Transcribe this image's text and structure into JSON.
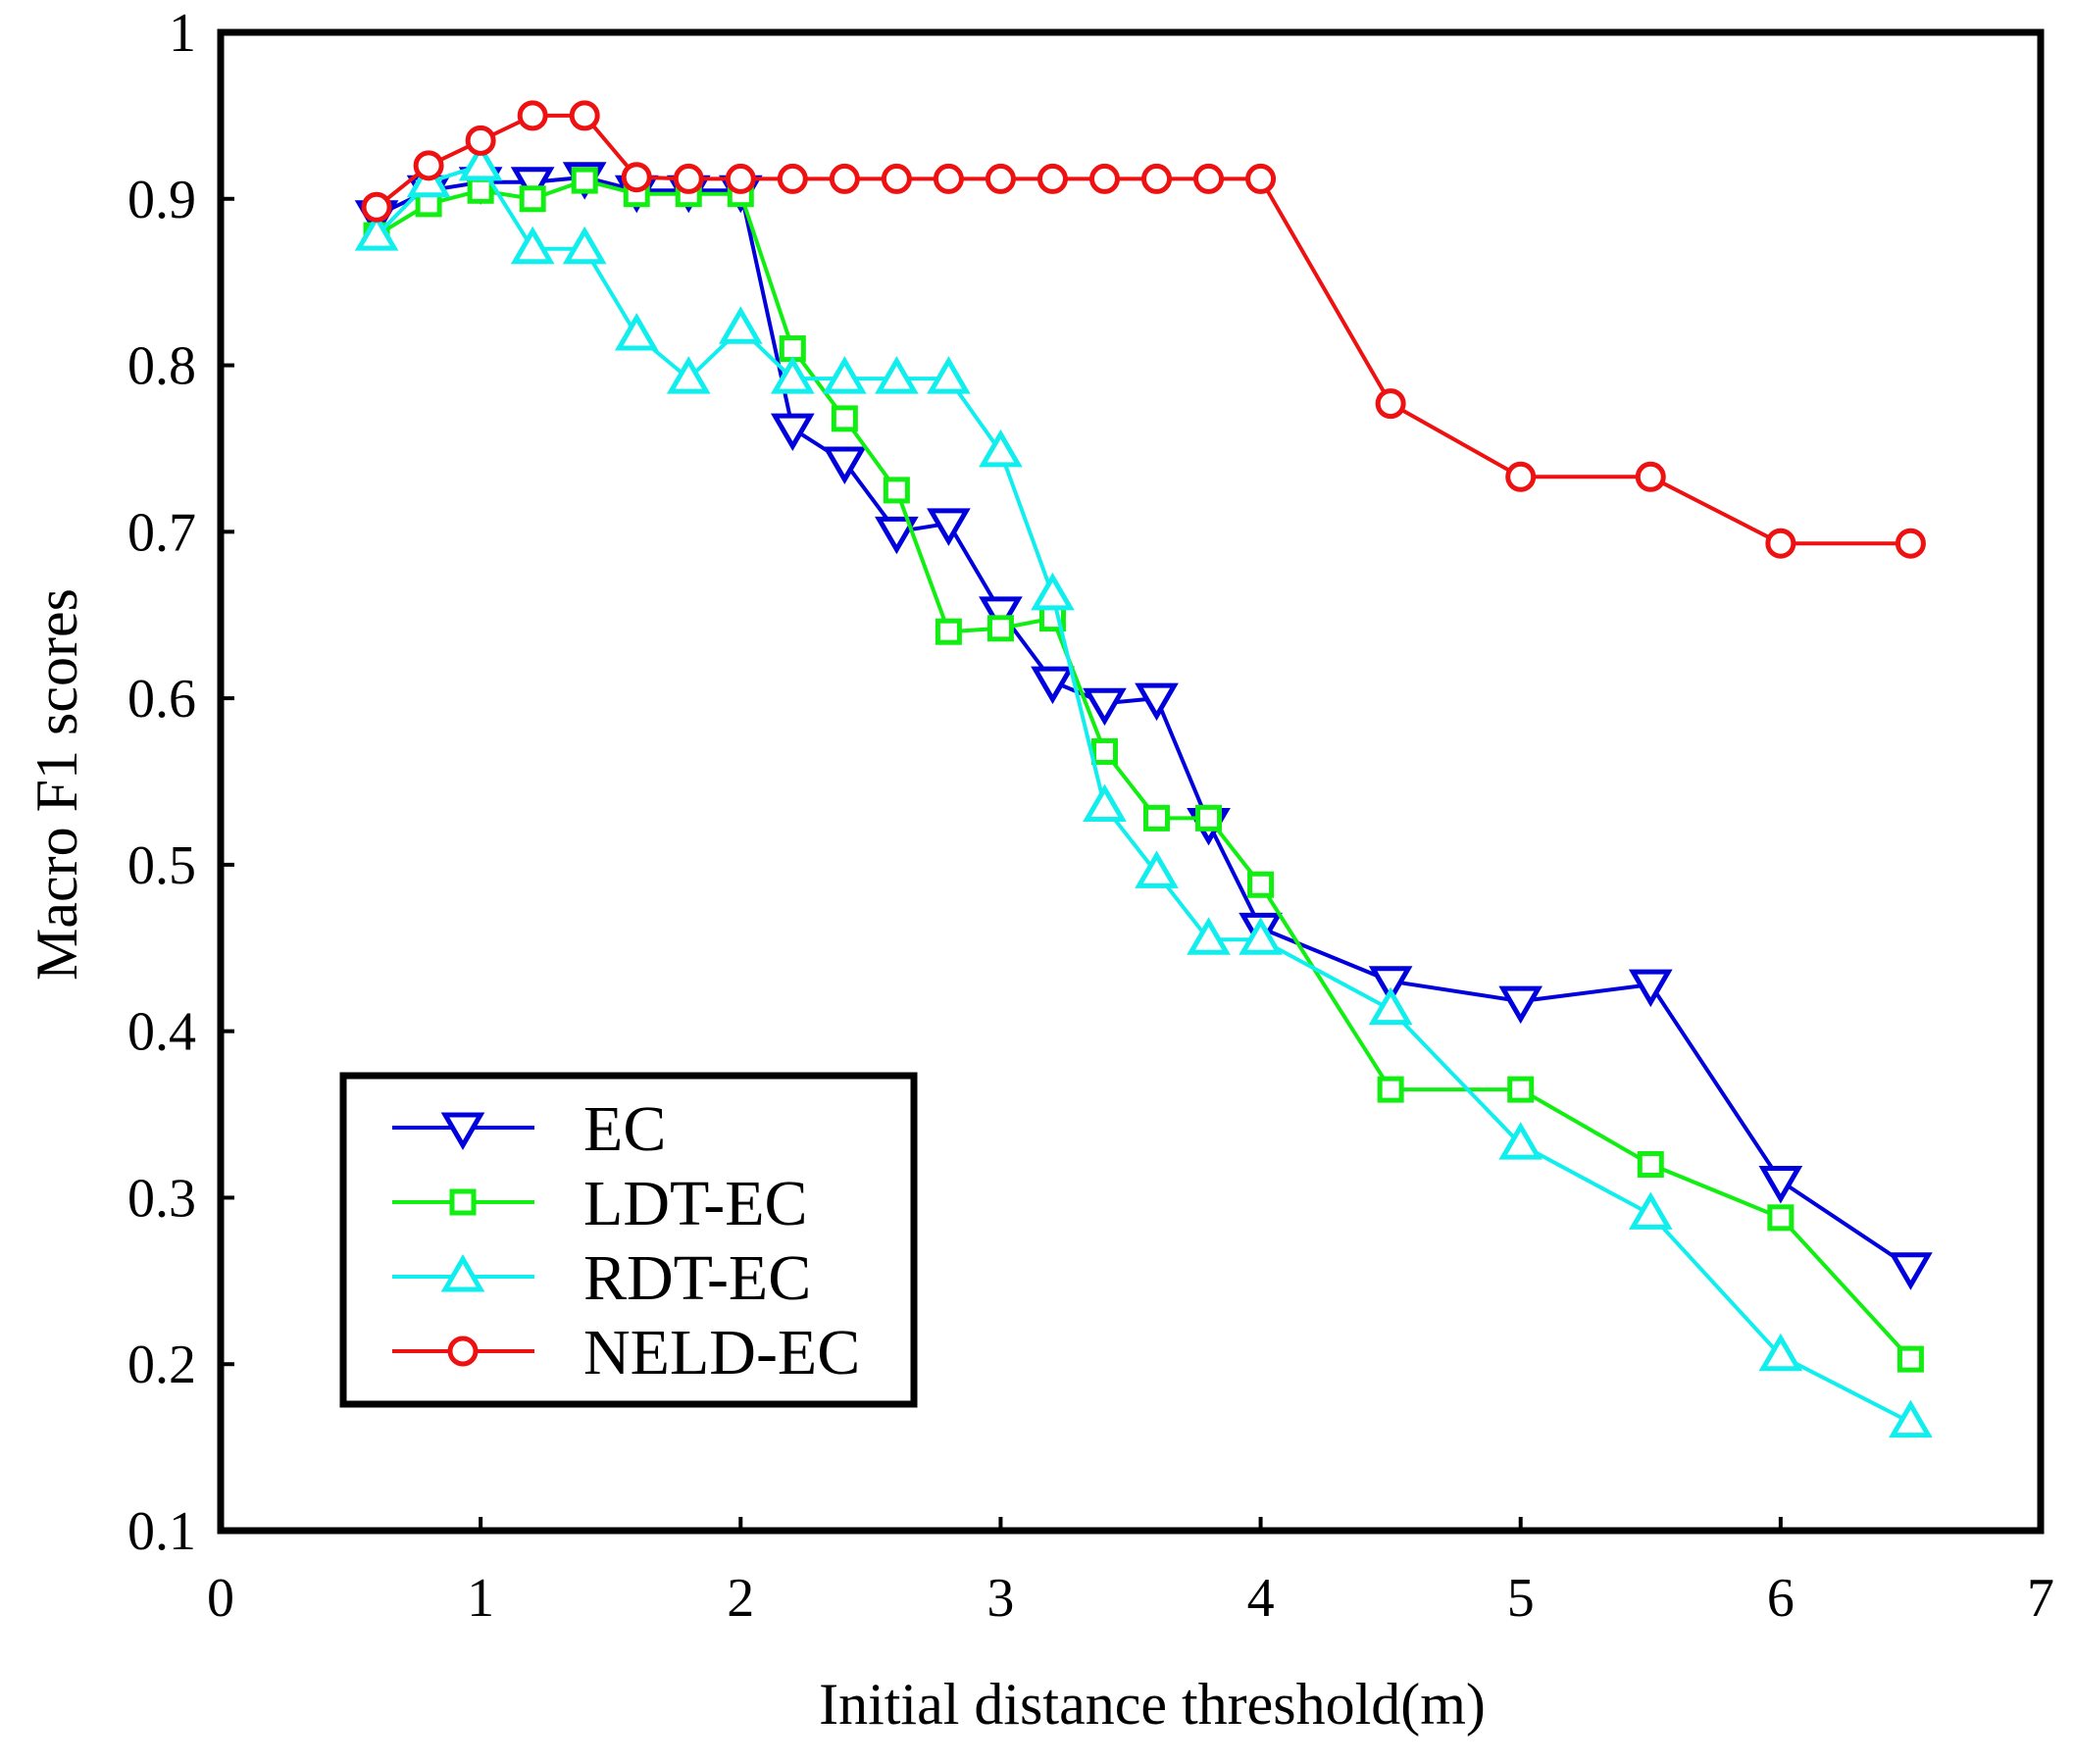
{
  "chart_data": {
    "type": "line",
    "title": "",
    "xlabel": "Initial distance threshold(m)",
    "ylabel": "Macro F1 scores",
    "xlim": [
      0,
      7
    ],
    "ylim": [
      0.1,
      1
    ],
    "xticks": [
      0,
      1,
      2,
      3,
      4,
      5,
      6,
      7
    ],
    "xtick_labels": [
      "0",
      "1",
      "2",
      "3",
      "4",
      "5",
      "6",
      "7"
    ],
    "yticks": [
      0.1,
      0.2,
      0.3,
      0.4,
      0.5,
      0.6,
      0.7,
      0.8,
      0.9,
      1
    ],
    "ytick_labels": [
      "0.1",
      "0.2",
      "0.3",
      "0.4",
      "0.5",
      "0.6",
      "0.7",
      "0.8",
      "0.9",
      "1"
    ],
    "grid": false,
    "legend_position": "bottom-left",
    "series": [
      {
        "name": "EC",
        "color": "#0000dd",
        "marker": "triangle-down",
        "x": [
          0.6,
          0.8,
          1.0,
          1.2,
          1.4,
          1.6,
          1.8,
          2.0,
          2.2,
          2.4,
          2.6,
          2.8,
          3.0,
          3.2,
          3.4,
          3.6,
          3.8,
          4.0,
          4.5,
          5.0,
          5.5,
          6.0,
          6.5
        ],
        "y": [
          0.89,
          0.905,
          0.91,
          0.91,
          0.913,
          0.905,
          0.905,
          0.905,
          0.762,
          0.742,
          0.7,
          0.705,
          0.652,
          0.61,
          0.597,
          0.6,
          0.525,
          0.462,
          0.43,
          0.418,
          0.428,
          0.31,
          0.258
        ]
      },
      {
        "name": "LDT-EC",
        "color": "#11ee11",
        "marker": "square",
        "x": [
          0.6,
          0.8,
          1.0,
          1.2,
          1.4,
          1.6,
          1.8,
          2.0,
          2.2,
          2.4,
          2.6,
          2.8,
          3.0,
          3.2,
          3.4,
          3.6,
          3.8,
          4.0,
          4.5,
          5.0,
          5.5,
          6.0,
          6.5
        ],
        "y": [
          0.878,
          0.897,
          0.905,
          0.9,
          0.911,
          0.903,
          0.903,
          0.903,
          0.81,
          0.768,
          0.725,
          0.64,
          0.642,
          0.648,
          0.568,
          0.528,
          0.528,
          0.488,
          0.365,
          0.365,
          0.32,
          0.288,
          0.203
        ]
      },
      {
        "name": "RDT-EC",
        "color": "#11eeee",
        "marker": "triangle-up",
        "x": [
          0.6,
          0.8,
          1.0,
          1.2,
          1.4,
          1.6,
          1.8,
          2.0,
          2.2,
          2.4,
          2.6,
          2.8,
          3.0,
          3.2,
          3.4,
          3.6,
          3.8,
          4.0,
          4.5,
          5.0,
          5.5,
          6.0,
          6.5
        ],
        "y": [
          0.878,
          0.91,
          0.92,
          0.87,
          0.87,
          0.818,
          0.792,
          0.822,
          0.792,
          0.792,
          0.792,
          0.792,
          0.748,
          0.662,
          0.535,
          0.495,
          0.455,
          0.455,
          0.413,
          0.332,
          0.29,
          0.205,
          0.165
        ]
      },
      {
        "name": "NELD-EC",
        "color": "#ee1111",
        "marker": "circle",
        "x": [
          0.6,
          0.8,
          1.0,
          1.2,
          1.4,
          1.6,
          1.8,
          2.0,
          2.2,
          2.4,
          2.6,
          2.8,
          3.0,
          3.2,
          3.4,
          3.6,
          3.8,
          4.0,
          4.5,
          5.0,
          5.5,
          6.0,
          6.5
        ],
        "y": [
          0.895,
          0.92,
          0.935,
          0.95,
          0.95,
          0.913,
          0.912,
          0.912,
          0.912,
          0.912,
          0.912,
          0.912,
          0.912,
          0.912,
          0.912,
          0.912,
          0.912,
          0.912,
          0.777,
          0.733,
          0.733,
          0.693,
          0.693
        ]
      }
    ]
  }
}
